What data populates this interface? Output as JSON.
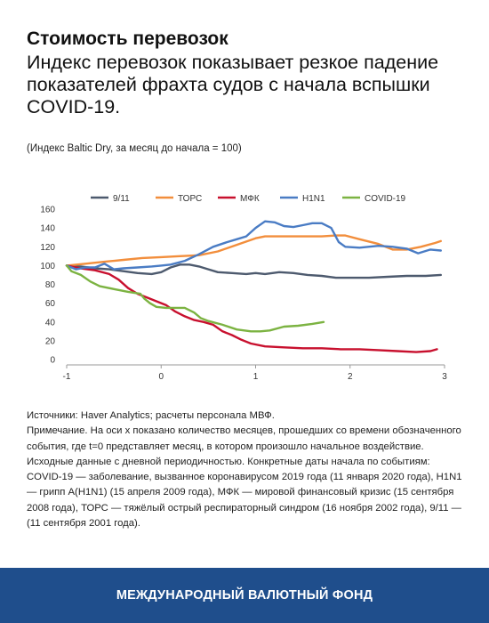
{
  "header": {
    "title": "Стоимость перевозок",
    "subtitle": "Индекс перевозок показывает резкое падение показателей фрахта судов с начала вспышки COVID-19.",
    "units_note": "(Индекс Baltic Dry, за месяц до начала = 100)"
  },
  "chart_data": {
    "type": "line",
    "xlim": [
      -1,
      3
    ],
    "ylim": [
      0,
      160
    ],
    "x_ticks": [
      "-1",
      "0",
      "1",
      "2",
      "3"
    ],
    "y_ticks": [
      "0",
      "20",
      "40",
      "60",
      "80",
      "100",
      "120",
      "140",
      "160"
    ],
    "grid": false,
    "legend_position": "top",
    "series": [
      {
        "name": "9/11",
        "color": "#4d5a6e",
        "points": [
          [
            -1,
            100
          ],
          [
            -0.85,
            99
          ],
          [
            -0.7,
            97
          ],
          [
            -0.55,
            96
          ],
          [
            -0.4,
            94
          ],
          [
            -0.25,
            92
          ],
          [
            -0.1,
            91
          ],
          [
            0,
            93
          ],
          [
            0.1,
            98
          ],
          [
            0.2,
            101
          ],
          [
            0.3,
            101
          ],
          [
            0.4,
            99
          ],
          [
            0.5,
            96
          ],
          [
            0.6,
            93
          ],
          [
            0.75,
            92
          ],
          [
            0.9,
            91
          ],
          [
            1.0,
            92
          ],
          [
            1.1,
            91
          ],
          [
            1.25,
            93
          ],
          [
            1.4,
            92
          ],
          [
            1.55,
            90
          ],
          [
            1.7,
            89
          ],
          [
            1.85,
            87
          ],
          [
            2.0,
            87
          ],
          [
            2.2,
            87
          ],
          [
            2.4,
            88
          ],
          [
            2.6,
            89
          ],
          [
            2.8,
            89
          ],
          [
            2.96,
            90
          ]
        ]
      },
      {
        "name": "ТОРС",
        "color": "#f28e3c",
        "points": [
          [
            -1,
            100
          ],
          [
            -0.8,
            102
          ],
          [
            -0.6,
            104
          ],
          [
            -0.4,
            106
          ],
          [
            -0.2,
            108
          ],
          [
            0,
            109
          ],
          [
            0.2,
            110
          ],
          [
            0.4,
            111
          ],
          [
            0.6,
            115
          ],
          [
            0.8,
            122
          ],
          [
            1.0,
            129
          ],
          [
            1.1,
            131
          ],
          [
            1.3,
            131
          ],
          [
            1.5,
            131
          ],
          [
            1.7,
            131
          ],
          [
            1.85,
            132
          ],
          [
            1.95,
            132
          ],
          [
            2.1,
            128
          ],
          [
            2.3,
            123
          ],
          [
            2.45,
            117
          ],
          [
            2.6,
            117
          ],
          [
            2.75,
            120
          ],
          [
            2.9,
            124
          ],
          [
            2.96,
            126
          ]
        ]
      },
      {
        "name": "МФК",
        "color": "#c8102e",
        "points": [
          [
            -1,
            100
          ],
          [
            -0.85,
            97
          ],
          [
            -0.7,
            95
          ],
          [
            -0.55,
            91
          ],
          [
            -0.45,
            85
          ],
          [
            -0.35,
            76
          ],
          [
            -0.25,
            70
          ],
          [
            -0.15,
            66
          ],
          [
            -0.05,
            62
          ],
          [
            0.05,
            58
          ],
          [
            0.15,
            51
          ],
          [
            0.25,
            46
          ],
          [
            0.35,
            42
          ],
          [
            0.45,
            40
          ],
          [
            0.55,
            37
          ],
          [
            0.65,
            30
          ],
          [
            0.75,
            26
          ],
          [
            0.85,
            21
          ],
          [
            0.95,
            17
          ],
          [
            1.1,
            14
          ],
          [
            1.3,
            13
          ],
          [
            1.5,
            12
          ],
          [
            1.7,
            12
          ],
          [
            1.9,
            11
          ],
          [
            2.1,
            11
          ],
          [
            2.3,
            10
          ],
          [
            2.5,
            9
          ],
          [
            2.7,
            8
          ],
          [
            2.85,
            9
          ],
          [
            2.92,
            11
          ]
        ]
      },
      {
        "name": "H1N1",
        "color": "#4a7cc4",
        "points": [
          [
            -1,
            100
          ],
          [
            -0.9,
            96
          ],
          [
            -0.8,
            98
          ],
          [
            -0.7,
            98
          ],
          [
            -0.6,
            102
          ],
          [
            -0.5,
            96
          ],
          [
            -0.4,
            97
          ],
          [
            -0.25,
            98
          ],
          [
            -0.1,
            99
          ],
          [
            0,
            100
          ],
          [
            0.1,
            101
          ],
          [
            0.25,
            105
          ],
          [
            0.4,
            112
          ],
          [
            0.55,
            120
          ],
          [
            0.7,
            125
          ],
          [
            0.8,
            128
          ],
          [
            0.9,
            131
          ],
          [
            1.0,
            140
          ],
          [
            1.1,
            147
          ],
          [
            1.2,
            146
          ],
          [
            1.3,
            142
          ],
          [
            1.4,
            141
          ],
          [
            1.5,
            143
          ],
          [
            1.6,
            145
          ],
          [
            1.7,
            145
          ],
          [
            1.8,
            140
          ],
          [
            1.88,
            125
          ],
          [
            1.95,
            120
          ],
          [
            2.1,
            119
          ],
          [
            2.3,
            121
          ],
          [
            2.45,
            120
          ],
          [
            2.6,
            118
          ],
          [
            2.72,
            113
          ],
          [
            2.85,
            117
          ],
          [
            2.96,
            116
          ]
        ]
      },
      {
        "name": "COVID-19",
        "color": "#7cb342",
        "points": [
          [
            -1,
            100
          ],
          [
            -0.95,
            94
          ],
          [
            -0.85,
            90
          ],
          [
            -0.75,
            83
          ],
          [
            -0.65,
            78
          ],
          [
            -0.5,
            75
          ],
          [
            -0.35,
            72
          ],
          [
            -0.22,
            70
          ],
          [
            -0.18,
            65
          ],
          [
            -0.12,
            60
          ],
          [
            -0.05,
            56
          ],
          [
            0.05,
            55
          ],
          [
            0.25,
            55
          ],
          [
            0.35,
            50
          ],
          [
            0.42,
            44
          ],
          [
            0.5,
            41
          ],
          [
            0.65,
            37
          ],
          [
            0.8,
            32
          ],
          [
            0.95,
            30
          ],
          [
            1.05,
            30
          ],
          [
            1.15,
            31
          ],
          [
            1.3,
            35
          ],
          [
            1.45,
            36
          ],
          [
            1.6,
            38
          ],
          [
            1.72,
            40
          ]
        ]
      }
    ]
  },
  "notes": {
    "sources": "Источники: Haver Analytics; расчеты персонала МВФ.",
    "note": "Примечание. На оси x показано количество месяцев, прошедших со времени обозначенного события, где t=0 представляет месяц, в котором произошло начальное воздействие. Исходные данные с дневной периодичностью. Конкретные даты начала по событиям: COVID-19 — заболевание, вызванное коронавирусом 2019 года (11 января 2020 года), H1N1 — грипп A(H1N1) (15 апреля 2009 года), МФК — мировой финансовый кризис (15 сентября 2008 года), ТОРС — тяжёлый острый респираторный синдром (16 ноября 2002 года), 9/11 — (11 сентября 2001 года)."
  },
  "footer": {
    "org": "МЕЖДУНАРОДНЫЙ ВАЛЮТНЫЙ ФОНД"
  }
}
